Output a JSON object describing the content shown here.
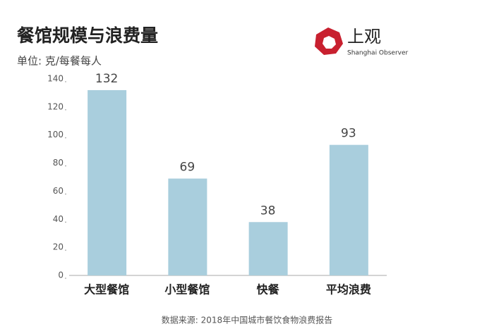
{
  "chart_data": {
    "type": "bar",
    "title": "餐馆规模与浪费量",
    "subtitle": "单位: 克/每餐每人",
    "categories": [
      "大型餐馆",
      "小型餐馆",
      "快餐",
      "平均浪费"
    ],
    "values": [
      132,
      69,
      38,
      93
    ],
    "color": "#a9cedd",
    "ylim": [
      0,
      140
    ],
    "yticks": [
      0,
      20,
      40,
      60,
      80,
      100,
      120,
      140
    ],
    "grid": false,
    "source": "数据来源: 2018年中国城市餐饮食物浪费报告"
  },
  "logo": {
    "name": "上观",
    "tagline": "Shanghai Observer"
  }
}
